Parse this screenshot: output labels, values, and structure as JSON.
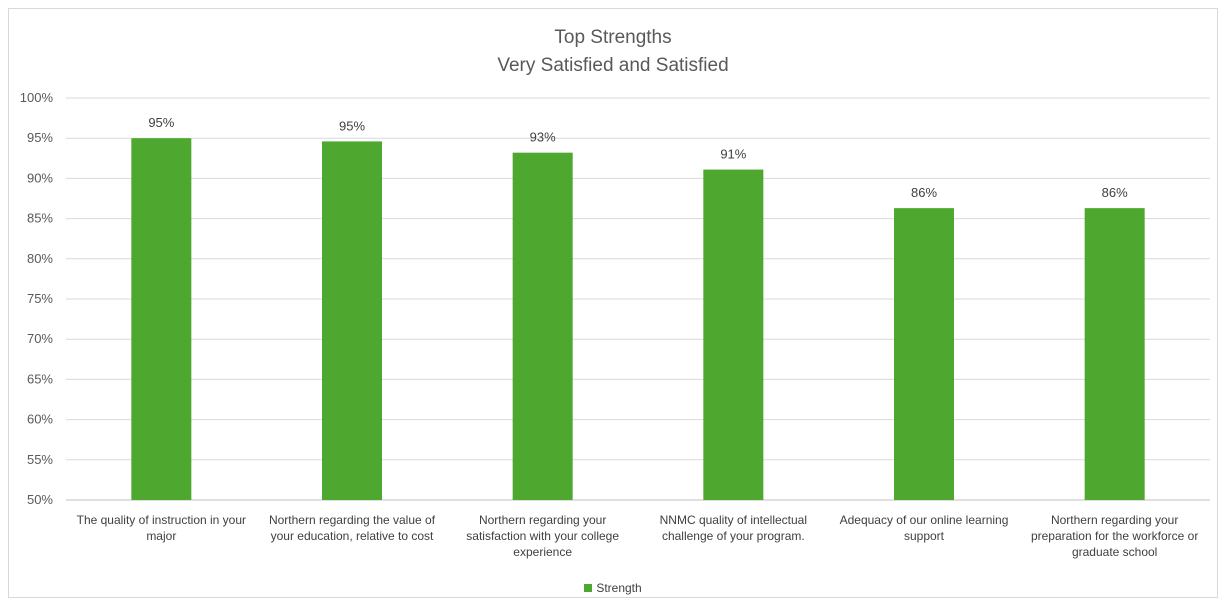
{
  "chart_data": {
    "type": "bar",
    "title": "Top Strengths",
    "subtitle": "Very Satisfied and Satisfied",
    "categories": [
      "The quality of instruction in your major",
      "Northern regarding the value of your education, relative to cost",
      "Northern regarding your satisfaction with your college experience",
      "NNMC quality of intellectual challenge of your program.",
      "Adequacy of our online learning support",
      "Northern regarding your preparation for the workforce or graduate school"
    ],
    "series": [
      {
        "name": "Strength",
        "values": [
          95,
          94.6,
          93.2,
          91.1,
          86.3,
          86.3
        ],
        "data_labels": [
          "95%",
          "95%",
          "93%",
          "91%",
          "86%",
          "86%"
        ],
        "color": "#4ea72e"
      }
    ],
    "ylim": [
      50,
      100
    ],
    "yticks": [
      "50%",
      "55%",
      "60%",
      "65%",
      "70%",
      "75%",
      "80%",
      "85%",
      "90%",
      "95%",
      "100%"
    ],
    "grid": true,
    "legend_position": "bottom"
  }
}
